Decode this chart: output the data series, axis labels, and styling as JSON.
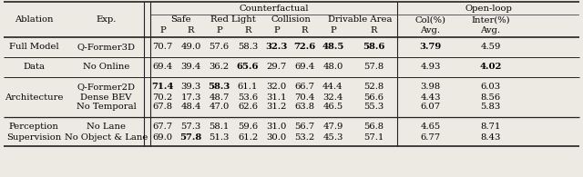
{
  "bg_color": "#edeae4",
  "font_size": 7.2,
  "rows": [
    {
      "ablation": "Full Model",
      "exp": "Q-Former3D",
      "values": [
        "70.7",
        "49.0",
        "57.6",
        "58.3",
        "32.3",
        "72.6",
        "48.5",
        "58.6",
        "3.79",
        "4.59"
      ],
      "bold": [
        false,
        false,
        false,
        false,
        true,
        true,
        true,
        true,
        true,
        false
      ]
    },
    {
      "ablation": "Data",
      "exp": "No Online",
      "values": [
        "69.4",
        "39.4",
        "36.2",
        "65.6",
        "29.7",
        "69.4",
        "48.0",
        "57.8",
        "4.93",
        "4.02"
      ],
      "bold": [
        false,
        false,
        false,
        true,
        false,
        false,
        false,
        false,
        false,
        true
      ]
    },
    {
      "ablation": "Architecture",
      "exp": "Q-Former2D",
      "values": [
        "71.4",
        "39.3",
        "58.3",
        "61.1",
        "32.0",
        "66.7",
        "44.4",
        "52.8",
        "3.98",
        "6.03"
      ],
      "bold": [
        true,
        false,
        true,
        false,
        false,
        false,
        false,
        false,
        false,
        false
      ]
    },
    {
      "ablation": "",
      "exp": "Dense BEV",
      "values": [
        "70.2",
        "17.3",
        "48.7",
        "53.6",
        "31.1",
        "70.4",
        "32.4",
        "56.6",
        "4.43",
        "8.56"
      ],
      "bold": [
        false,
        false,
        false,
        false,
        false,
        false,
        false,
        false,
        false,
        false
      ]
    },
    {
      "ablation": "",
      "exp": "No Temporal",
      "values": [
        "67.8",
        "48.4",
        "47.0",
        "62.6",
        "31.2",
        "63.8",
        "46.5",
        "55.3",
        "6.07",
        "5.83"
      ],
      "bold": [
        false,
        false,
        false,
        false,
        false,
        false,
        false,
        false,
        false,
        false
      ]
    },
    {
      "ablation": "Perception",
      "exp": "No Lane",
      "values": [
        "67.7",
        "57.3",
        "58.1",
        "59.6",
        "31.0",
        "56.7",
        "47.9",
        "56.8",
        "4.65",
        "8.71"
      ],
      "bold": [
        false,
        false,
        false,
        false,
        false,
        false,
        false,
        false,
        false,
        false
      ]
    },
    {
      "ablation": "Supervision",
      "exp": "No Object & Lane",
      "values": [
        "69.0",
        "57.8",
        "51.3",
        "61.2",
        "30.0",
        "53.2",
        "45.3",
        "57.1",
        "6.77",
        "8.43"
      ],
      "bold": [
        false,
        true,
        false,
        false,
        false,
        false,
        false,
        false,
        false,
        false
      ]
    }
  ]
}
